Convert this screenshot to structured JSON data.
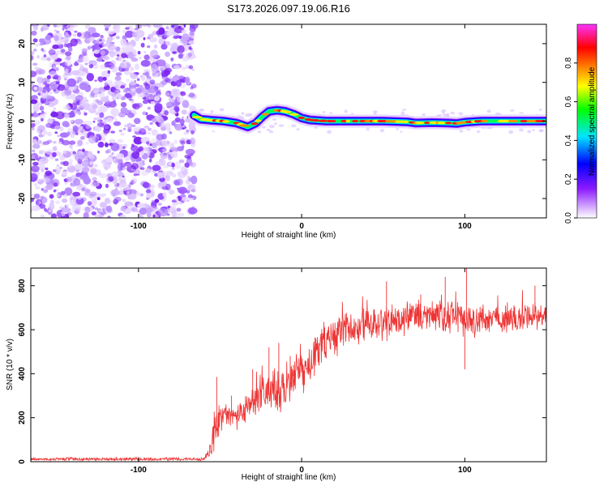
{
  "title": "S173.2026.097.19.06.R16",
  "chart_data": [
    {
      "type": "heatmap",
      "name": "spectrogram",
      "xlabel": "Height of straight line (km)",
      "ylabel": "Frequency (Hz)",
      "xlim": [
        -166,
        150
      ],
      "ylim": [
        -25,
        25
      ],
      "xticks": [
        -100,
        0,
        100
      ],
      "xtick_labels": [
        "-100",
        "0",
        "100"
      ],
      "yticks": [
        -20,
        -10,
        0,
        10,
        20
      ],
      "ytick_labels": [
        "-20",
        "-10",
        "0",
        "10",
        "20"
      ],
      "noise_region_x": [
        -166,
        -66
      ],
      "signal_track": {
        "x": [
          -66,
          -62,
          -55,
          -48,
          -40,
          -33,
          -28,
          -24,
          -20,
          -15,
          -10,
          -5,
          0,
          5,
          15,
          30,
          50,
          65,
          70,
          80,
          90,
          95,
          100,
          110,
          120,
          135,
          150
        ],
        "freq": [
          1.5,
          0.5,
          0.2,
          0.0,
          -0.5,
          -1.5,
          -0.5,
          1.2,
          2.5,
          2.8,
          2.5,
          1.8,
          0.8,
          0.3,
          0.0,
          0.0,
          0.0,
          -0.2,
          -0.5,
          -0.4,
          -0.5,
          -0.6,
          -0.3,
          0.0,
          0.0,
          0.0,
          0.0
        ]
      },
      "colorbar": {
        "label": "Normalized spectral amplitude",
        "ticks": [
          0.0,
          0.2,
          0.4,
          0.6,
          0.8
        ],
        "tick_labels": [
          "0.0",
          "0.2",
          "0.4",
          "0.6",
          "0.8"
        ],
        "range": [
          0.0,
          1.0
        ],
        "colormap": [
          "#ffffff",
          "#8c1aff",
          "#0000ff",
          "#00e5ff",
          "#00ff00",
          "#ffff00",
          "#ff8000",
          "#ff0000",
          "#ff00ff"
        ]
      }
    },
    {
      "type": "line",
      "name": "snr",
      "xlabel": "Height of straight line (km)",
      "ylabel": "SNR (10 * v/v)",
      "xlim": [
        -166,
        150
      ],
      "ylim": [
        0,
        880
      ],
      "xticks": [
        -100,
        0,
        100
      ],
      "xtick_labels": [
        "-100",
        "0",
        "100"
      ],
      "yticks": [
        0,
        200,
        400,
        600,
        800
      ],
      "ytick_labels": [
        "0",
        "200",
        "400",
        "600",
        "800"
      ],
      "color": "#ee3333",
      "envelope": {
        "x": [
          -166,
          -60,
          -55,
          -52,
          -50,
          -45,
          -40,
          -35,
          -30,
          -25,
          -20,
          -15,
          -10,
          -5,
          0,
          5,
          10,
          15,
          20,
          30,
          40,
          50,
          60,
          70,
          80,
          90,
          100,
          110,
          120,
          130,
          140,
          150
        ],
        "mean": [
          12,
          12,
          60,
          180,
          200,
          210,
          200,
          240,
          270,
          300,
          310,
          320,
          350,
          390,
          400,
          440,
          500,
          540,
          570,
          600,
          630,
          640,
          650,
          650,
          660,
          660,
          650,
          640,
          660,
          650,
          660,
          660
        ],
        "spread": [
          8,
          8,
          60,
          120,
          80,
          60,
          60,
          70,
          80,
          100,
          110,
          130,
          130,
          120,
          110,
          120,
          120,
          110,
          100,
          100,
          100,
          100,
          90,
          90,
          90,
          90,
          90,
          90,
          80,
          80,
          80,
          80
        ]
      },
      "peaks": [
        [
          -52,
          385
        ],
        [
          -43,
          300
        ],
        [
          -30,
          420
        ],
        [
          -20,
          520
        ],
        [
          -14,
          540
        ],
        [
          -7,
          480
        ],
        [
          -5,
          440
        ],
        [
          17,
          560
        ],
        [
          30,
          600
        ],
        [
          52,
          820
        ],
        [
          73,
          760
        ],
        [
          88,
          840
        ],
        [
          101,
          880
        ],
        [
          143,
          800
        ],
        [
          100,
          420
        ]
      ]
    }
  ]
}
